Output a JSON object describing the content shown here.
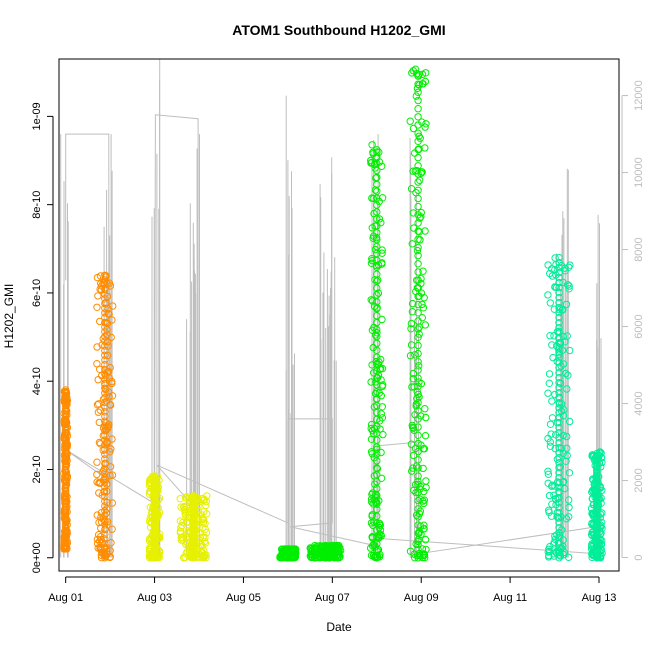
{
  "chart_data": {
    "type": "scatter",
    "title": "ATOM1 Southbound H1202_GMI",
    "xlabel": "Date",
    "ylabel": "H1202_GMI",
    "x_ticks": [
      "Aug 01",
      "Aug 03",
      "Aug 05",
      "Aug 07",
      "Aug 09",
      "Aug 11",
      "Aug 13"
    ],
    "x_tick_days": [
      1,
      3,
      5,
      7,
      9,
      11,
      13
    ],
    "xlim_days": [
      0.85,
      13.45
    ],
    "y_ticks": [
      "0e+00",
      "2e-10",
      "4e-10",
      "6e-10",
      "8e-10",
      "1e-09"
    ],
    "y_tick_values": [
      0,
      2e-10,
      4e-10,
      6e-10,
      8e-10,
      1e-09
    ],
    "ylim": [
      -3e-11,
      1.13e-09
    ],
    "y2_ticks": [
      "0",
      "2000",
      "4000",
      "6000",
      "8000",
      "10000",
      "12000"
    ],
    "y2_tick_values": [
      0,
      2000,
      4000,
      6000,
      8000,
      10000,
      12000
    ],
    "y2lim": [
      -350,
      12950
    ],
    "grid": false,
    "legend": "none",
    "series": [
      {
        "color": "#ff8c00",
        "clusters": [
          {
            "x": 1.0,
            "xw": 0.04,
            "ymin": 2e-11,
            "ymax": 3.8e-10
          },
          {
            "x": 1.88,
            "xw": 0.18,
            "ymin": 0,
            "ymax": 6.4e-10
          }
        ]
      },
      {
        "color": "#e6f000",
        "clusters": [
          {
            "x": 3.0,
            "xw": 0.12,
            "ymin": 0,
            "ymax": 1.85e-10
          },
          {
            "x": 3.88,
            "xw": 0.3,
            "ymin": 0,
            "ymax": 1.4e-10
          }
        ]
      },
      {
        "color": "#00ee00",
        "clusters": [
          {
            "x": 6.0,
            "xw": 0.18,
            "ymin": 0,
            "ymax": 2e-11
          },
          {
            "x": 6.85,
            "xw": 0.35,
            "ymin": 0,
            "ymax": 2.8e-11
          },
          {
            "x": 8.0,
            "xw": 0.14,
            "ymin": 0,
            "ymax": 9.4e-10
          },
          {
            "x": 8.93,
            "xw": 0.18,
            "ymin": 0,
            "ymax": 1.11e-09
          }
        ]
      },
      {
        "color": "#00ee99",
        "clusters": [
          {
            "x": 12.1,
            "xw": 0.25,
            "ymin": 0,
            "ymax": 6.8e-10
          },
          {
            "x": 12.95,
            "xw": 0.12,
            "ymin": 0,
            "ymax": 2.4e-10
          }
        ]
      }
    ],
    "secondary_series": {
      "color": "#bebebe",
      "spikes": [
        {
          "x": 1.0,
          "y": 11000
        },
        {
          "x": 1.95,
          "y": 11000
        },
        {
          "x": 3.02,
          "y": 12950
        },
        {
          "x": 3.82,
          "y": 9200
        },
        {
          "x": 3.92,
          "y": 11000
        },
        {
          "x": 6.0,
          "y": 12000
        },
        {
          "x": 6.05,
          "y": 5300
        },
        {
          "x": 6.82,
          "y": 9700
        },
        {
          "x": 6.9,
          "y": 10400
        },
        {
          "x": 7.0,
          "y": 7800
        },
        {
          "x": 8.0,
          "y": 11000
        },
        {
          "x": 8.85,
          "y": 10900
        },
        {
          "x": 12.1,
          "y": 9000
        },
        {
          "x": 12.2,
          "y": 10100
        },
        {
          "x": 12.95,
          "y": 8900
        }
      ],
      "path": [
        [
          1.0,
          7200
        ],
        [
          1.0,
          11000
        ],
        [
          1.97,
          11000
        ],
        [
          1.97,
          2000
        ],
        [
          1.0,
          2800
        ],
        [
          3.0,
          1400
        ],
        [
          3.02,
          11500
        ],
        [
          3.98,
          11400
        ],
        [
          3.98,
          1200
        ],
        [
          3.05,
          2400
        ],
        [
          6.0,
          900
        ],
        [
          6.0,
          3600
        ],
        [
          7.0,
          3600
        ],
        [
          7.0,
          900
        ],
        [
          6.05,
          800
        ],
        [
          8.0,
          300
        ],
        [
          8.0,
          2900
        ],
        [
          8.95,
          3000
        ],
        [
          8.95,
          100
        ],
        [
          12.95,
          800
        ],
        [
          12.95,
          100
        ],
        [
          8.0,
          500
        ]
      ]
    }
  }
}
